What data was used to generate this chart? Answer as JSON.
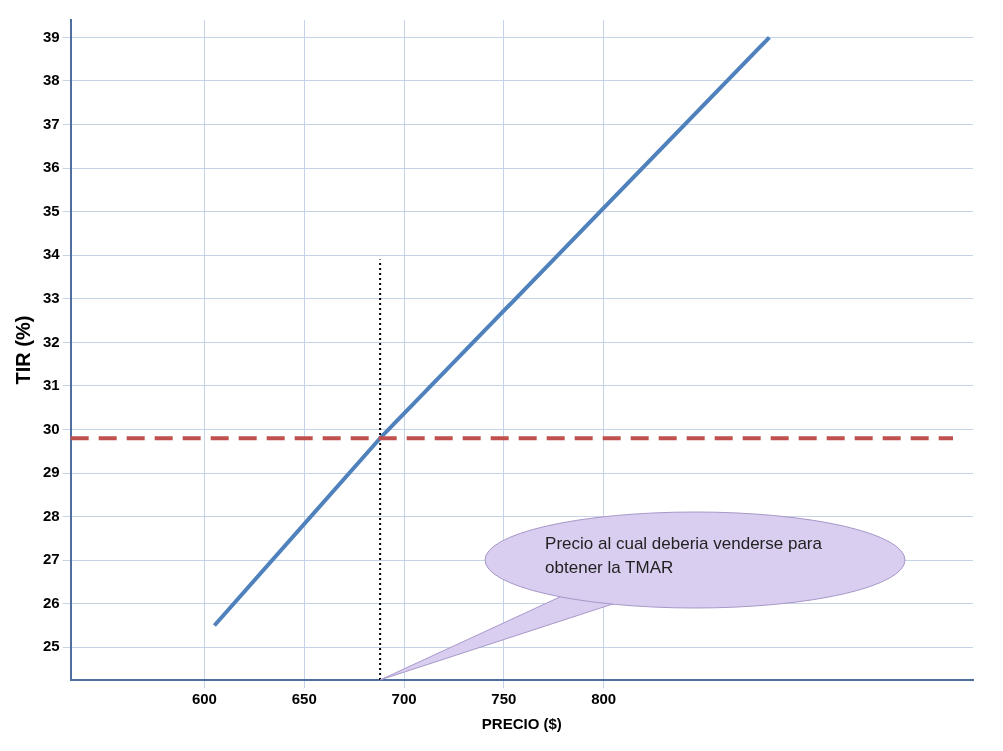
{
  "chart_data": {
    "type": "line",
    "xlabel": "PRECIO ($)",
    "ylabel": "TIR (%)",
    "xlim": [
      533,
      985
    ],
    "xticks": [
      600,
      650,
      700,
      750,
      800
    ],
    "ylim": [
      24.25,
      39.4
    ],
    "yticks": [
      25,
      26,
      27,
      28,
      29,
      30,
      31,
      32,
      33,
      34,
      35,
      36,
      37,
      38,
      39
    ],
    "series": [
      {
        "color": "#4f81bd",
        "x": [
          605,
          688,
          883
        ],
        "values": [
          25.5,
          29.8,
          39.0
        ],
        "line_style": "solid"
      },
      {
        "color": "#000000",
        "x": [
          688,
          688
        ],
        "values": [
          24.25,
          33.9
        ],
        "line_style": "dotted"
      }
    ],
    "ref_lines": [
      {
        "axis": "y",
        "value": 29.8,
        "color": "#c0504d",
        "line_style": "dashed"
      }
    ],
    "annotations": [
      {
        "text": "Precio al cual deberia venderse para obtener la TMAR",
        "x": 688,
        "y": 24.25
      }
    ],
    "grid": true,
    "legend": false,
    "marker": "none"
  }
}
